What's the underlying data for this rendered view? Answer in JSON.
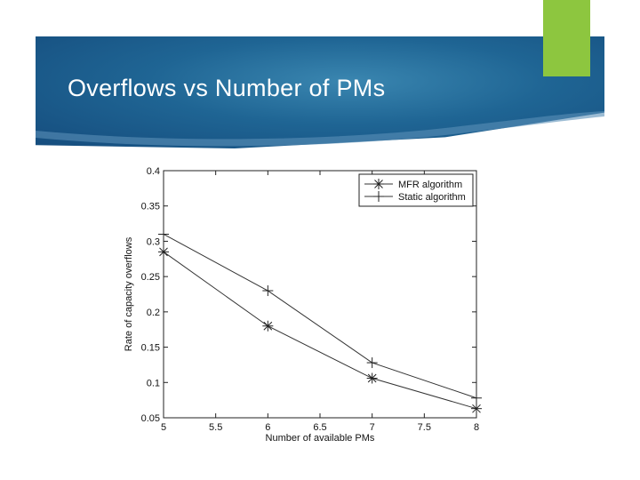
{
  "slide": {
    "title": "Overflows vs Number of PMs",
    "banner_color": "#1f6594",
    "accent_color": "#8dc63f"
  },
  "chart_data": {
    "type": "line",
    "title": "",
    "xlabel": "Number of available PMs",
    "ylabel": "Rate of capacity overflows",
    "xlim": [
      5,
      8
    ],
    "ylim": [
      0.05,
      0.4
    ],
    "xticks": [
      "5",
      "5.5",
      "6",
      "6.5",
      "7",
      "7.5",
      "8"
    ],
    "yticks": [
      "0.05",
      "0.1",
      "0.15",
      "0.2",
      "0.25",
      "0.3",
      "0.35",
      "0.4"
    ],
    "grid": false,
    "legend_position": "top-right",
    "series": [
      {
        "name": "MFR algorithm",
        "marker": "asterisk",
        "x": [
          5,
          6,
          7,
          8
        ],
        "y": [
          0.285,
          0.18,
          0.106,
          0.063
        ]
      },
      {
        "name": "Static algorithm",
        "marker": "plus",
        "x": [
          5,
          6,
          7,
          8
        ],
        "y": [
          0.31,
          0.23,
          0.128,
          0.078
        ]
      }
    ]
  }
}
